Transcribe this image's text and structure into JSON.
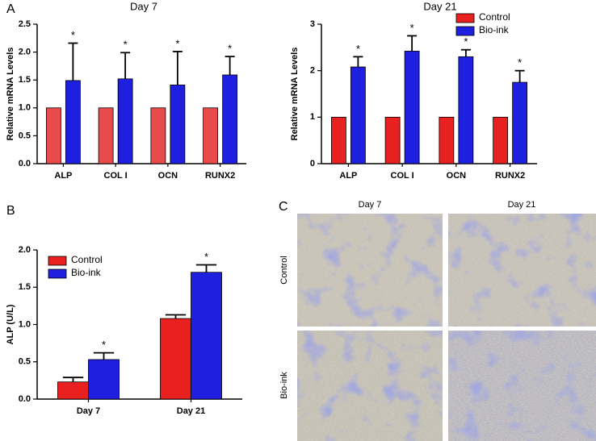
{
  "panel_labels": [
    "A",
    "B",
    "C"
  ],
  "micrographs": {
    "columns": [
      "Day 7",
      "Day 21"
    ],
    "rows": [
      "Control",
      "Bio-ink"
    ]
  },
  "chart_data": [
    {
      "type": "bar",
      "title": "Day 7",
      "y_label": "Relative mRNA Levels",
      "categories": [
        "ALP",
        "COL I",
        "OCN",
        "RUNX2"
      ],
      "series": [
        {
          "color": "#e84b4b",
          "values": [
            1,
            1,
            1,
            1
          ]
        },
        {
          "color": "#1f1fe0",
          "values": [
            1.49,
            1.52,
            1.41,
            1.59
          ],
          "errors": [
            0.67,
            0.47,
            0.6,
            0.33
          ],
          "annotations": [
            "*",
            "*",
            "*",
            "*"
          ]
        }
      ],
      "ylim": [
        0,
        2.5
      ],
      "yticks": [
        {
          "value": 0,
          "label": "0.0"
        },
        0.5,
        {
          "value": 1,
          "label": "1.0"
        },
        1.5,
        {
          "value": 2,
          "label": "2.0"
        },
        2.5
      ]
    },
    {
      "type": "bar",
      "title": "Day 21",
      "y_label": "Relative mRNA Levels",
      "categories": [
        "ALP",
        "COL I",
        "OCN",
        "RUNX2"
      ],
      "series": [
        {
          "name": "Control",
          "color": "#e82020",
          "values": [
            1,
            1,
            1,
            1
          ]
        },
        {
          "name": "Bio-ink",
          "color": "#1f1fe0",
          "values": [
            2.08,
            2.42,
            2.3,
            1.75
          ],
          "errors": [
            0.22,
            0.33,
            0.15,
            0.25
          ],
          "annotations": [
            "*",
            "*",
            "*",
            "*"
          ]
        }
      ],
      "ylim": [
        0,
        3
      ],
      "yticks": [
        0,
        1,
        2,
        3
      ],
      "legend": "top-right"
    },
    {
      "type": "bar",
      "y_label": "ALP (U/L)",
      "categories": [
        "Day 7",
        "Day 21"
      ],
      "series": [
        {
          "name": "Control",
          "color": "#e82020",
          "values": [
            0.23,
            1.08
          ],
          "errors": [
            0.06,
            0.05
          ]
        },
        {
          "name": "Bio-ink",
          "color": "#1f1fe0",
          "values": [
            0.53,
            1.7
          ],
          "errors": [
            0.09,
            0.1
          ],
          "annotations": [
            "*",
            "*"
          ]
        }
      ],
      "ylim": [
        0,
        2.0
      ],
      "yticks": [
        {
          "value": 0,
          "label": "0.0"
        },
        0.5,
        {
          "value": 1,
          "label": "1.0"
        },
        1.5,
        {
          "value": 2,
          "label": "2.0"
        }
      ],
      "legend": "top-left"
    }
  ]
}
